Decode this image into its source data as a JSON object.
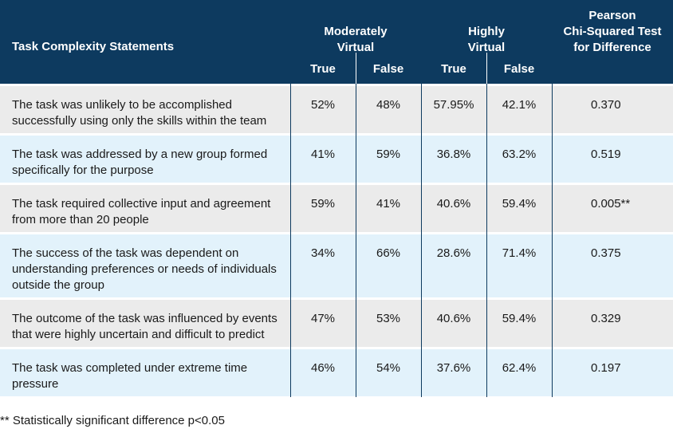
{
  "header": {
    "statements_label": "Task Complexity Statements",
    "moderately_virtual": [
      "Moderately",
      "Virtual"
    ],
    "highly_virtual": [
      "Highly",
      "Virtual"
    ],
    "pearson": [
      "Pearson",
      "Chi-Squared Test",
      "for Difference"
    ],
    "true_label": "True",
    "false_label": "False"
  },
  "rows": [
    {
      "statement": [
        "The task was unlikely to be accomplished",
        "successfully using only the skills within the team"
      ],
      "mv_true": "52%",
      "mv_false": "48%",
      "hv_true": "57.95%",
      "hv_false": "42.1%",
      "chi": "0.370"
    },
    {
      "statement": [
        "The task was addressed by a new group formed",
        "specifically for the purpose"
      ],
      "mv_true": "41%",
      "mv_false": "59%",
      "hv_true": "36.8%",
      "hv_false": "63.2%",
      "chi": "0.519"
    },
    {
      "statement": [
        "The task required collective input and agreement",
        "from more than 20 people"
      ],
      "mv_true": "59%",
      "mv_false": "41%",
      "hv_true": "40.6%",
      "hv_false": "59.4%",
      "chi": "0.005**"
    },
    {
      "statement": [
        "The success of the task was dependent on",
        "understanding preferences or needs of individuals",
        "outside the group"
      ],
      "mv_true": "34%",
      "mv_false": "66%",
      "hv_true": "28.6%",
      "hv_false": "71.4%",
      "chi": "0.375"
    },
    {
      "statement": [
        "The outcome of the task was influenced by events",
        "that were highly uncertain and difficult to predict"
      ],
      "mv_true": "47%",
      "mv_false": "53%",
      "hv_true": "40.6%",
      "hv_false": "59.4%",
      "chi": "0.329"
    },
    {
      "statement": [
        "The task was completed under extreme time",
        "pressure"
      ],
      "mv_true": "46%",
      "mv_false": "54%",
      "hv_true": "37.6%",
      "hv_false": "62.4%",
      "chi": "0.197"
    }
  ],
  "footnote": "** Statistically significant difference p<0.05",
  "colors": {
    "header_bg": "#0d3a5f",
    "row_gray": "#ebebeb",
    "row_blue": "#e2f2fb"
  }
}
